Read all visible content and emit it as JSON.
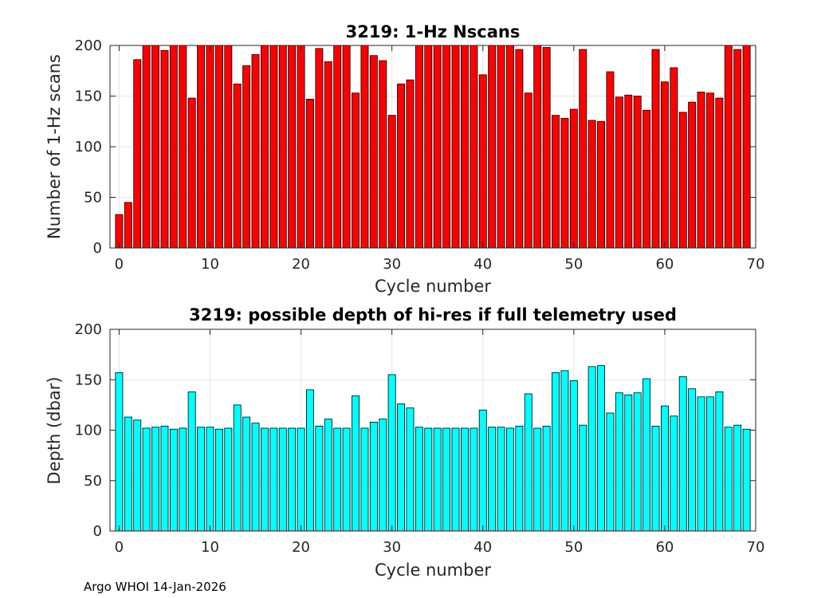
{
  "footer_text": "Argo WHOI 14-Jan-2026",
  "chart_data": [
    {
      "type": "bar",
      "title": "3219: 1-Hz Nscans",
      "xlabel": "Cycle number",
      "ylabel": "Number of 1-Hz scans",
      "xlim": [
        -1,
        70
      ],
      "ylim": [
        0,
        200
      ],
      "xticks": [
        0,
        10,
        20,
        30,
        40,
        50,
        60,
        70
      ],
      "yticks": [
        0,
        50,
        100,
        150,
        200
      ],
      "grid": true,
      "bar_color": "#ff0000",
      "x": [
        0,
        1,
        2,
        3,
        4,
        5,
        6,
        7,
        8,
        9,
        10,
        11,
        12,
        13,
        14,
        15,
        16,
        17,
        18,
        19,
        20,
        21,
        22,
        23,
        24,
        25,
        26,
        27,
        28,
        29,
        30,
        31,
        32,
        33,
        34,
        35,
        36,
        37,
        38,
        39,
        40,
        41,
        42,
        43,
        44,
        45,
        46,
        47,
        48,
        49,
        50,
        51,
        52,
        53,
        54,
        55,
        56,
        57,
        58,
        59,
        60,
        61,
        62,
        63,
        64,
        65,
        66,
        67,
        68,
        69
      ],
      "values": [
        33,
        45,
        186,
        200,
        200,
        195,
        200,
        200,
        148,
        200,
        200,
        200,
        200,
        162,
        180,
        191,
        200,
        200,
        200,
        200,
        200,
        147,
        197,
        184,
        200,
        200,
        153,
        200,
        190,
        185,
        131,
        162,
        166,
        200,
        200,
        200,
        200,
        200,
        200,
        200,
        171,
        200,
        200,
        200,
        196,
        153,
        200,
        198,
        131,
        128,
        137,
        196,
        126,
        125,
        174,
        149,
        151,
        150,
        136,
        196,
        164,
        178,
        134,
        144,
        154,
        153,
        148,
        200,
        196,
        200
      ]
    },
    {
      "type": "bar",
      "title": "3219: possible depth of hi-res if full telemetry used",
      "xlabel": "Cycle number",
      "ylabel": "Depth (dbar)",
      "xlim": [
        -1,
        70
      ],
      "ylim": [
        0,
        200
      ],
      "xticks": [
        0,
        10,
        20,
        30,
        40,
        50,
        60,
        70
      ],
      "yticks": [
        0,
        50,
        100,
        150,
        200
      ],
      "grid": true,
      "bar_color": "#00ffff",
      "x": [
        0,
        1,
        2,
        3,
        4,
        5,
        6,
        7,
        8,
        9,
        10,
        11,
        12,
        13,
        14,
        15,
        16,
        17,
        18,
        19,
        20,
        21,
        22,
        23,
        24,
        25,
        26,
        27,
        28,
        29,
        30,
        31,
        32,
        33,
        34,
        35,
        36,
        37,
        38,
        39,
        40,
        41,
        42,
        43,
        44,
        45,
        46,
        47,
        48,
        49,
        50,
        51,
        52,
        53,
        54,
        55,
        56,
        57,
        58,
        59,
        60,
        61,
        62,
        63,
        64,
        65,
        66,
        67,
        68,
        69
      ],
      "values": [
        157,
        113,
        110,
        102,
        103,
        104,
        101,
        102,
        138,
        103,
        103,
        101,
        102,
        125,
        113,
        107,
        102,
        102,
        102,
        102,
        102,
        140,
        104,
        111,
        102,
        102,
        134,
        102,
        108,
        111,
        155,
        126,
        122,
        103,
        102,
        102,
        102,
        102,
        102,
        102,
        120,
        103,
        103,
        102,
        104,
        136,
        102,
        104,
        157,
        159,
        149,
        105,
        163,
        164,
        117,
        137,
        135,
        137,
        151,
        104,
        124,
        114,
        153,
        141,
        133,
        133,
        138,
        103,
        105,
        101
      ]
    }
  ]
}
